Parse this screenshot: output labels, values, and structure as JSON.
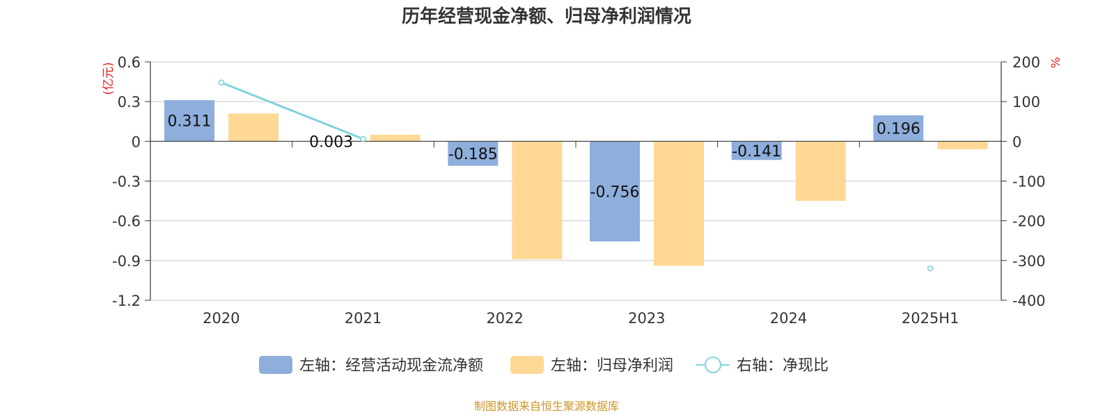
{
  "chart_data": {
    "type": "bar",
    "title": "历年经营现金净额、归母净利润情况",
    "categories": [
      "2020",
      "2021",
      "2022",
      "2023",
      "2024",
      "2025H1"
    ],
    "left_axis": {
      "unit": "(亿元)",
      "ylim": [
        -1.2,
        0.6
      ],
      "ticks": [
        "0.6",
        "0.3",
        "0",
        "-0.3",
        "-0.6",
        "-0.9",
        "-1.2"
      ],
      "tick_values": [
        0.6,
        0.3,
        0,
        -0.3,
        -0.6,
        -0.9,
        -1.2
      ]
    },
    "right_axis": {
      "unit": "%",
      "ylim": [
        -400,
        200
      ],
      "ticks": [
        "200",
        "100",
        "0",
        "-100",
        "-200",
        "-300",
        "-400"
      ],
      "tick_values": [
        200,
        100,
        0,
        -100,
        -200,
        -300,
        -400
      ]
    },
    "series": [
      {
        "name": "左轴：经营活动现金流净额",
        "kind": "bar",
        "axis": "left",
        "color": "#8eaedc",
        "values": [
          0.311,
          0.003,
          -0.185,
          -0.756,
          -0.141,
          0.196
        ],
        "labels": [
          "0.311",
          "0.003",
          "-0.185",
          "-0.756",
          "-0.141",
          "0.196"
        ]
      },
      {
        "name": "左轴：归母净利润",
        "kind": "bar",
        "axis": "left",
        "color": "#ffd896",
        "values": [
          0.21,
          0.05,
          -0.89,
          -0.94,
          -0.45,
          -0.06
        ]
      },
      {
        "name": "右轴：净现比",
        "kind": "line",
        "axis": "right",
        "color": "#7fd3d8",
        "values": [
          148,
          6,
          null,
          null,
          null,
          -320
        ]
      }
    ],
    "grid": true,
    "legend_position": "bottom"
  },
  "source": "制图数据来自恒生聚源数据库",
  "colors": {
    "axis_unit": "#e0201e",
    "source": "#c9952a",
    "gridline": "#c8c8c8",
    "axis": "#333333"
  }
}
